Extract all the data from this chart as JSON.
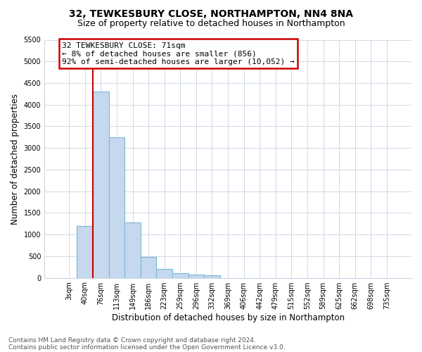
{
  "title1": "32, TEWKESBURY CLOSE, NORTHAMPTON, NN4 8NA",
  "title2": "Size of property relative to detached houses in Northampton",
  "xlabel": "Distribution of detached houses by size in Northampton",
  "ylabel": "Number of detached properties",
  "categories": [
    "3sqm",
    "40sqm",
    "76sqm",
    "113sqm",
    "149sqm",
    "186sqm",
    "223sqm",
    "259sqm",
    "296sqm",
    "332sqm",
    "369sqm",
    "406sqm",
    "442sqm",
    "479sqm",
    "515sqm",
    "552sqm",
    "589sqm",
    "625sqm",
    "662sqm",
    "698sqm",
    "735sqm"
  ],
  "values": [
    0,
    1200,
    4300,
    3250,
    1275,
    475,
    200,
    100,
    75,
    60,
    0,
    0,
    0,
    0,
    0,
    0,
    0,
    0,
    0,
    0,
    0
  ],
  "bar_color": "#c5d8ed",
  "bar_edge_color": "#7ab8d9",
  "annotation_line1": "32 TEWKESBURY CLOSE: 71sqm",
  "annotation_line2": "← 8% of detached houses are smaller (856)",
  "annotation_line3": "92% of semi-detached houses are larger (10,052) →",
  "annotation_box_color": "#ffffff",
  "annotation_box_edge": "#cc0000",
  "vline_color": "#cc0000",
  "vline_x": 2,
  "ylim": [
    0,
    5500
  ],
  "yticks": [
    0,
    500,
    1000,
    1500,
    2000,
    2500,
    3000,
    3500,
    4000,
    4500,
    5000,
    5500
  ],
  "footer1": "Contains HM Land Registry data © Crown copyright and database right 2024.",
  "footer2": "Contains public sector information licensed under the Open Government Licence v3.0.",
  "bg_color": "#ffffff",
  "grid_color": "#d0d8e8",
  "title_fontsize": 10,
  "subtitle_fontsize": 9,
  "axis_label_fontsize": 8.5,
  "tick_fontsize": 7,
  "annotation_fontsize": 8,
  "footer_fontsize": 6.5
}
